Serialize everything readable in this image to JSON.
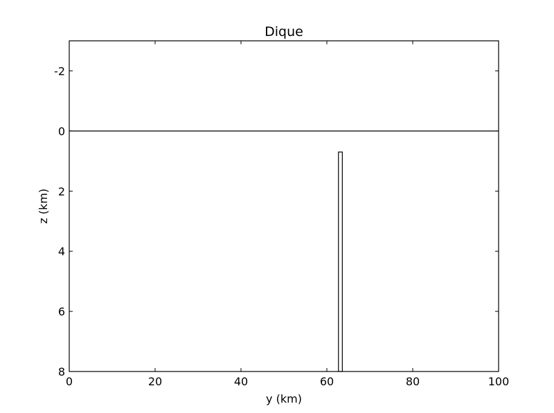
{
  "chart_data": {
    "type": "line",
    "title": "Dique",
    "xlabel": "y (km)",
    "ylabel": "z (km)",
    "xlim": [
      0,
      100
    ],
    "ylim": [
      8,
      -3
    ],
    "y_inverted": true,
    "xticks": [
      0,
      20,
      40,
      60,
      80,
      100
    ],
    "xtick_labels": [
      "0",
      "20",
      "40",
      "60",
      "80",
      "100"
    ],
    "yticks": [
      -2,
      0,
      2,
      4,
      6,
      8
    ],
    "ytick_labels": [
      "-2",
      "0",
      "2",
      "4",
      "6",
      "8"
    ],
    "grid": false,
    "series": [
      {
        "kind": "horizontal-line",
        "y": 0,
        "color": "#000000"
      },
      {
        "kind": "rectangle",
        "x": [
          62.7,
          63.6
        ],
        "z": [
          0.7,
          8
        ],
        "fill": "#ffffff",
        "stroke": "#000000"
      }
    ]
  }
}
